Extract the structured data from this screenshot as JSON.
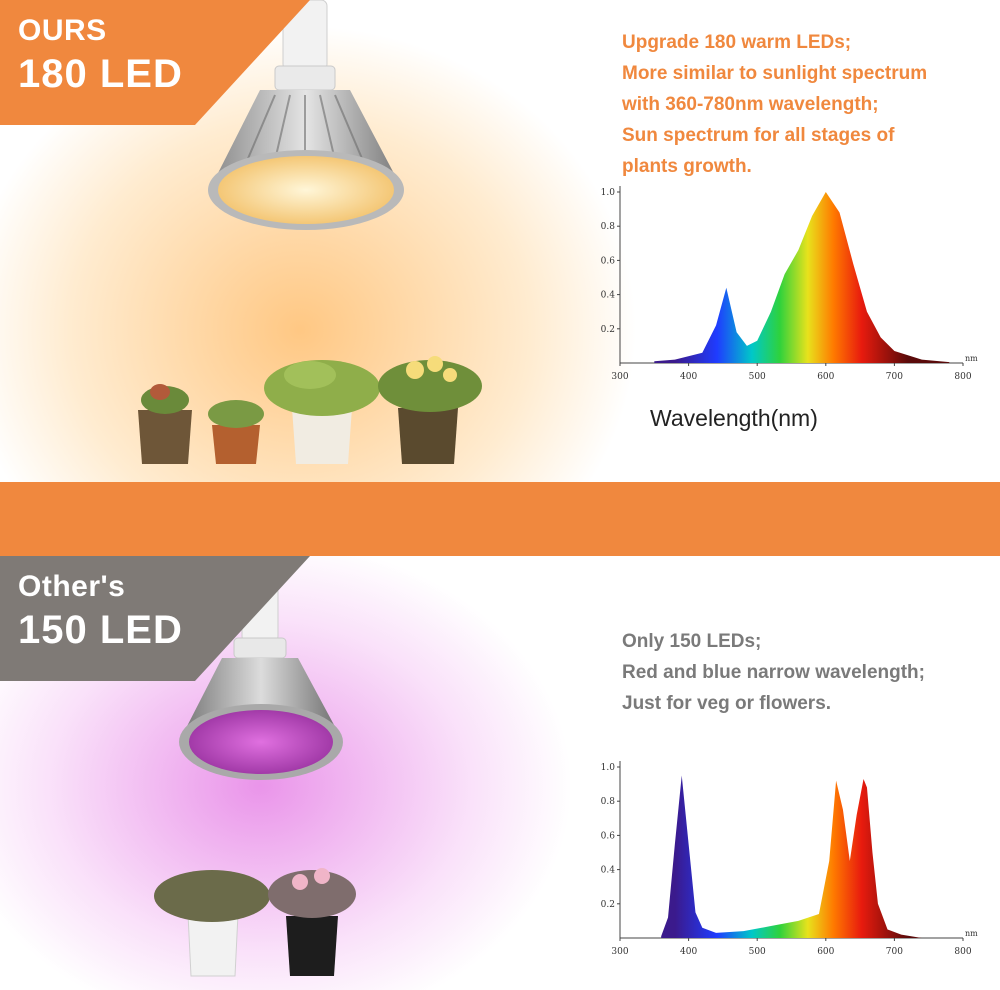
{
  "top": {
    "badge_line1": "OURS",
    "badge_line2": "180 LED",
    "description": [
      "Upgrade 180 warm LEDs;",
      "More similar to sunlight spectrum",
      "with 360-780nm wavelength;",
      "Sun spectrum for all stages of",
      "plants growth."
    ],
    "caption": "Wavelength(nm)",
    "accent_color": "#f0883e"
  },
  "bottom": {
    "badge_line1": "Other's",
    "badge_line2": "150 LED",
    "description": [
      "Only 150 LEDs;",
      "Red and blue narrow wavelength;",
      "Just for veg or flowers."
    ],
    "badge_color": "#7f7a76",
    "text_color": "#7a7a7a"
  },
  "chart_data": [
    {
      "type": "area",
      "xlim": [
        300,
        800
      ],
      "ylim": [
        0,
        1.0
      ],
      "x_ticks": [
        "300",
        "400",
        "500",
        "600",
        "700",
        "800"
      ],
      "y_ticks": [
        "1.0",
        "0.8",
        "0.6",
        "0.4",
        "0.2"
      ],
      "axis_unit": "nm",
      "xlabel": "Wavelength(nm)",
      "x": [
        350,
        380,
        420,
        440,
        455,
        470,
        485,
        500,
        520,
        540,
        560,
        580,
        600,
        620,
        640,
        660,
        680,
        700,
        740,
        780
      ],
      "y": [
        0.01,
        0.02,
        0.06,
        0.22,
        0.44,
        0.18,
        0.1,
        0.13,
        0.3,
        0.52,
        0.66,
        0.86,
        1.0,
        0.88,
        0.58,
        0.3,
        0.15,
        0.07,
        0.02,
        0.005
      ]
    },
    {
      "type": "area",
      "xlim": [
        300,
        800
      ],
      "ylim": [
        0,
        1.0
      ],
      "x_ticks": [
        "300",
        "400",
        "500",
        "600",
        "700",
        "800"
      ],
      "y_ticks": [
        "1.0",
        "0.8",
        "0.6",
        "0.4",
        "0.2"
      ],
      "axis_unit": "nm",
      "x": [
        360,
        370,
        380,
        390,
        400,
        410,
        420,
        440,
        480,
        520,
        560,
        590,
        605,
        615,
        625,
        635,
        645,
        655,
        660,
        668,
        676,
        690,
        710,
        740
      ],
      "y": [
        0.01,
        0.12,
        0.55,
        0.95,
        0.55,
        0.15,
        0.06,
        0.03,
        0.04,
        0.07,
        0.1,
        0.14,
        0.45,
        0.92,
        0.75,
        0.45,
        0.72,
        0.93,
        0.88,
        0.5,
        0.2,
        0.05,
        0.02,
        0.0
      ]
    }
  ]
}
